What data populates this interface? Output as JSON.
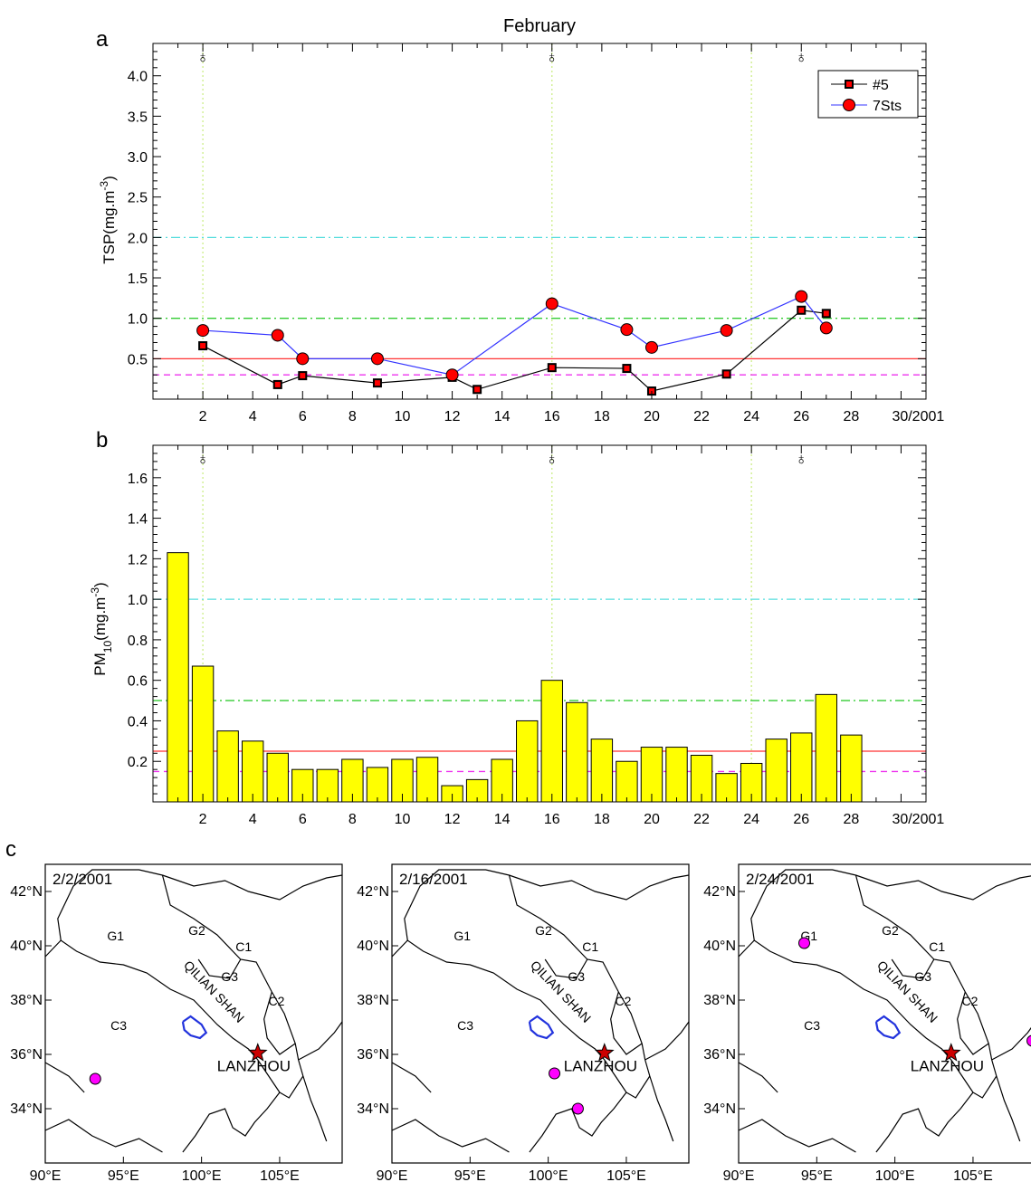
{
  "figure": {
    "title": "February",
    "panel_a": "a",
    "panel_b": "b",
    "panel_c": "c",
    "last_tick": "30/2001",
    "storm_symbol": "♁"
  },
  "colors": {
    "tsp_5_line": "#000000",
    "tsp_5_marker": "#ff0000",
    "tsp_7sts_line": "#3333ff",
    "tsp_7sts_marker": "#ff0000",
    "bar_fill": "#ffff00",
    "ref_cyan": "#55dddd",
    "ref_green": "#33cc33",
    "ref_red": "#ff3333",
    "ref_magenta": "#ee33ee",
    "dust_day_line": "#ccee88",
    "plateau_lake": "#2233dd",
    "site_dot": "#ff00ff",
    "lanzhou_star": "#cc0000"
  },
  "chart_data": [
    {
      "type": "line",
      "panel": "a",
      "title": "February",
      "xlabel": "",
      "ylabel": "TSP(mg.m-3)",
      "xlim": [
        0,
        31
      ],
      "ylim": [
        0,
        4.4
      ],
      "x_ticks": [
        2,
        4,
        6,
        8,
        10,
        12,
        14,
        16,
        18,
        20,
        22,
        24,
        26,
        28,
        30
      ],
      "x_tick_labels": [
        "2",
        "4",
        "6",
        "8",
        "10",
        "12",
        "14",
        "16",
        "18",
        "20",
        "22",
        "24",
        "26",
        "28",
        "30/2001"
      ],
      "y_ticks": [
        0.5,
        1.0,
        1.5,
        2.0,
        2.5,
        3.0,
        3.5,
        4.0
      ],
      "y_tick_labels": [
        "0.5",
        "1.0",
        "1.5",
        "2.0",
        "2.5",
        "3.0",
        "3.5",
        "4.0"
      ],
      "legend": {
        "placement": "top-right"
      },
      "series": [
        {
          "name": "#5",
          "marker": "square",
          "x": [
            2,
            5,
            6,
            9,
            12,
            13,
            16,
            19,
            20,
            23,
            26,
            27
          ],
          "y": [
            0.66,
            0.18,
            0.29,
            0.2,
            0.27,
            0.12,
            0.39,
            0.38,
            0.1,
            0.31,
            1.1,
            1.06
          ]
        },
        {
          "name": "7Sts",
          "marker": "circle",
          "x": [
            2,
            5,
            6,
            9,
            12,
            16,
            19,
            20,
            23,
            26,
            27
          ],
          "y": [
            0.85,
            0.79,
            0.5,
            0.5,
            0.3,
            1.18,
            0.86,
            0.64,
            0.85,
            1.27,
            0.88
          ]
        }
      ],
      "reference_lines": [
        {
          "y": 2.0,
          "style": "dash-dot",
          "color": "cyan"
        },
        {
          "y": 1.0,
          "style": "dash-dot",
          "color": "green"
        },
        {
          "y": 0.5,
          "style": "solid",
          "color": "red"
        },
        {
          "y": 0.3,
          "style": "dashed",
          "color": "magenta"
        }
      ],
      "dust_event_days": [
        2,
        16,
        24
      ],
      "storm_symbol_days": [
        2,
        16,
        26
      ]
    },
    {
      "type": "bar",
      "panel": "b",
      "xlabel": "",
      "ylabel": "PM10(mg.m-3)",
      "xlim": [
        0,
        31
      ],
      "ylim": [
        0,
        1.76
      ],
      "x_ticks": [
        2,
        4,
        6,
        8,
        10,
        12,
        14,
        16,
        18,
        20,
        22,
        24,
        26,
        28,
        30
      ],
      "x_tick_labels": [
        "2",
        "4",
        "6",
        "8",
        "10",
        "12",
        "14",
        "16",
        "18",
        "20",
        "22",
        "24",
        "26",
        "28",
        "30/2001"
      ],
      "y_ticks": [
        0.2,
        0.4,
        0.6,
        0.8,
        1.0,
        1.2,
        1.4,
        1.6
      ],
      "y_tick_labels": [
        "0.2",
        "0.4",
        "0.6",
        "0.8",
        "1.0",
        "1.2",
        "1.4",
        "1.6"
      ],
      "categories": [
        1,
        2,
        3,
        4,
        5,
        6,
        7,
        8,
        9,
        10,
        11,
        12,
        13,
        14,
        15,
        16,
        17,
        18,
        19,
        20,
        21,
        22,
        23,
        24,
        25,
        26,
        27,
        28
      ],
      "values": [
        1.23,
        0.67,
        0.35,
        0.3,
        0.24,
        0.16,
        0.16,
        0.21,
        0.17,
        0.21,
        0.22,
        0.08,
        0.11,
        0.21,
        0.4,
        0.6,
        0.49,
        0.31,
        0.2,
        0.27,
        0.27,
        0.23,
        0.14,
        0.19,
        0.31,
        0.34,
        0.53,
        0.33
      ],
      "reference_lines": [
        {
          "y": 1.0,
          "style": "dash-dot",
          "color": "cyan"
        },
        {
          "y": 0.5,
          "style": "dash-dot",
          "color": "green"
        },
        {
          "y": 0.25,
          "style": "solid",
          "color": "red"
        },
        {
          "y": 0.15,
          "style": "dashed",
          "color": "magenta"
        }
      ],
      "dust_event_days": [
        2,
        16,
        24
      ],
      "storm_symbol_days": [
        2,
        16,
        26
      ]
    }
  ],
  "maps": {
    "lon_range": [
      90,
      109
    ],
    "lat_range": [
      32,
      43
    ],
    "lon_ticks": [
      90,
      95,
      100,
      105
    ],
    "lat_ticks": [
      34,
      36,
      38,
      40,
      42
    ],
    "lon_tick_labels": [
      "90°E",
      "95°E",
      "100°E",
      "105°E"
    ],
    "lat_tick_labels": [
      "34°N",
      "36°N",
      "38°N",
      "40°N",
      "42°N"
    ],
    "city_label": "LANZHOU",
    "mountain_label": "QILIAN SHAN",
    "city_location": {
      "lon": 103.6,
      "lat": 36.05
    },
    "region_labels": [
      {
        "text": "G1",
        "lon": 94.5,
        "lat": 40.2
      },
      {
        "text": "G2",
        "lon": 99.7,
        "lat": 40.4
      },
      {
        "text": "C1",
        "lon": 102.7,
        "lat": 39.8
      },
      {
        "text": "G3",
        "lon": 101.8,
        "lat": 38.7
      },
      {
        "text": "C2",
        "lon": 104.8,
        "lat": 37.8
      },
      {
        "text": "C3",
        "lon": 94.7,
        "lat": 36.9
      }
    ],
    "panels": [
      {
        "date": "2/2/2001",
        "sites": [
          {
            "lon": 93.2,
            "lat": 35.1
          }
        ]
      },
      {
        "date": "2/16/2001",
        "sites": [
          {
            "lon": 100.4,
            "lat": 35.3
          },
          {
            "lon": 101.9,
            "lat": 34.0
          }
        ]
      },
      {
        "date": "2/24/2001",
        "sites": [
          {
            "lon": 94.2,
            "lat": 40.1
          },
          {
            "lon": 108.8,
            "lat": 36.5
          }
        ]
      }
    ]
  }
}
